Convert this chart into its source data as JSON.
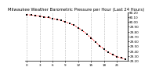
{
  "title": "Milwaukee Weather Barometric Pressure per Hour (Last 24 Hours)",
  "hours": [
    0,
    1,
    2,
    3,
    4,
    5,
    6,
    7,
    8,
    9,
    10,
    11,
    12,
    13,
    14,
    15,
    16,
    17,
    18,
    19,
    20,
    21,
    22,
    23
  ],
  "pressure": [
    30.15,
    30.14,
    30.13,
    30.12,
    30.1,
    30.09,
    30.07,
    30.05,
    30.03,
    30.0,
    29.97,
    29.93,
    29.88,
    29.82,
    29.75,
    29.67,
    29.59,
    29.51,
    29.44,
    29.38,
    29.33,
    29.29,
    29.26,
    29.24
  ],
  "x_tick_positions": [
    0,
    3,
    6,
    9,
    12,
    15,
    18,
    21
  ],
  "x_tick_labels": [
    "0",
    "3",
    "6",
    "9",
    "12",
    "15",
    "18",
    "21"
  ],
  "ylim": [
    29.2,
    30.2
  ],
  "ytick_step": 0.1,
  "line_color": "#ff0000",
  "marker_color": "#000000",
  "grid_color": "#999999",
  "background_color": "#ffffff",
  "title_fontsize": 3.8,
  "tick_fontsize": 3.0,
  "ylabel_fontsize": 3.0
}
